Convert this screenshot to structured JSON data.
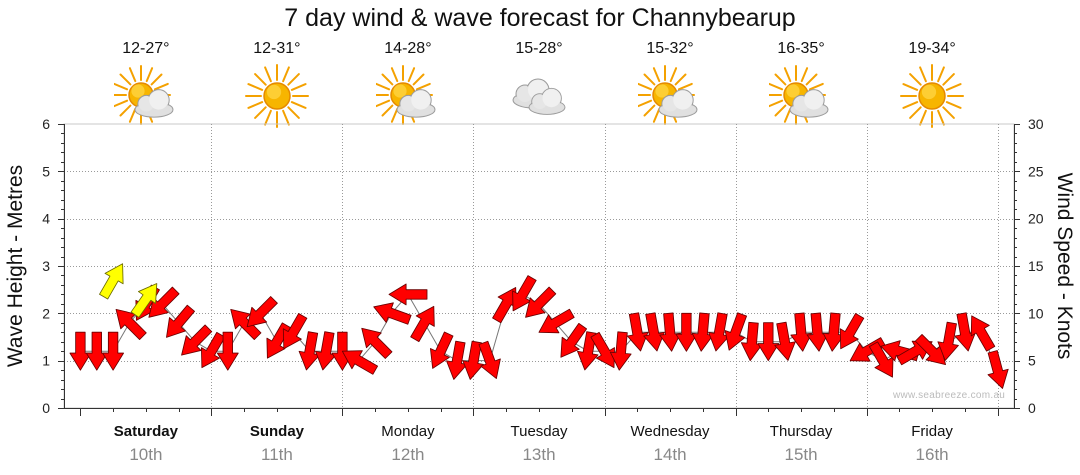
{
  "title": "7 day wind & wave forecast for Channybearup",
  "credit": "www.seabreeze.com.au",
  "colors": {
    "wind_arrow": "#ff0000",
    "wave_arrow": "#ffff00",
    "grid": "#9a9a9a",
    "day_number": "#888888"
  },
  "days": [
    {
      "name": "Saturday",
      "date": "10th",
      "temp": "12-27°",
      "icon": "sun-cloud-icon",
      "bold": true
    },
    {
      "name": "Sunday",
      "date": "11th",
      "temp": "12-31°",
      "icon": "sun-icon",
      "bold": true
    },
    {
      "name": "Monday",
      "date": "12th",
      "temp": "14-28°",
      "icon": "sun-cloud-icon",
      "bold": false
    },
    {
      "name": "Tuesday",
      "date": "13th",
      "temp": "15-28°",
      "icon": "cloud-icon",
      "bold": false
    },
    {
      "name": "Wednesday",
      "date": "14th",
      "temp": "15-32°",
      "icon": "sun-cloud-icon",
      "bold": false
    },
    {
      "name": "Thursday",
      "date": "15th",
      "temp": "16-35°",
      "icon": "sun-cloud-icon",
      "bold": false
    },
    {
      "name": "Friday",
      "date": "16th",
      "temp": "19-34°",
      "icon": "sun-icon",
      "bold": false
    }
  ],
  "chart_data": {
    "type": "line",
    "ylabel": "Wave Height - Metres",
    "y2label": "Wind Speed - Knots",
    "ylim": [
      0,
      6
    ],
    "y2lim": [
      0,
      30
    ],
    "yticks": [
      "0",
      "1",
      "2",
      "3",
      "4",
      "5",
      "6"
    ],
    "y2ticks": [
      "0",
      "5",
      "10",
      "15",
      "20",
      "25",
      "30"
    ],
    "grid": true,
    "x_unit": "hours from start of Saturday",
    "xlim": [
      -9,
      165
    ],
    "series": [
      {
        "kind": "wind",
        "x": [
          -6,
          -3,
          0,
          3,
          6,
          9,
          12,
          15,
          18,
          21,
          24,
          27,
          30,
          33,
          36,
          39,
          42,
          45,
          48,
          51,
          54,
          57,
          60,
          63,
          66,
          69,
          72,
          75,
          78,
          81,
          84,
          87,
          90,
          93,
          96,
          99,
          102,
          105,
          108,
          111,
          114,
          117,
          120,
          123,
          126,
          129,
          132,
          135,
          138,
          141,
          144,
          147,
          150,
          153,
          156,
          159,
          162
        ],
        "speed": [
          6,
          6,
          6,
          9,
          11,
          11,
          9,
          7,
          6,
          6,
          9,
          10,
          7,
          8,
          6,
          6,
          6,
          5,
          7,
          10,
          12,
          9,
          6,
          5,
          5,
          5,
          11,
          12,
          11,
          9,
          7,
          6,
          6,
          6,
          8,
          8,
          8,
          8,
          8,
          8,
          8,
          7,
          7,
          7,
          8,
          8,
          8,
          8,
          6,
          5,
          6,
          6,
          6,
          7,
          8,
          8,
          4
        ],
        "direction_deg": [
          90,
          90,
          90,
          225,
          120,
          135,
          130,
          135,
          120,
          90,
          225,
          135,
          120,
          120,
          100,
          100,
          90,
          210,
          225,
          200,
          180,
          300,
          115,
          100,
          100,
          70,
          300,
          120,
          135,
          150,
          125,
          100,
          60,
          95,
          80,
          80,
          85,
          90,
          95,
          100,
          110,
          95,
          90,
          80,
          85,
          85,
          95,
          120,
          150,
          60,
          195,
          330,
          45,
          100,
          80,
          240,
          75
        ]
      },
      {
        "kind": "wave",
        "x": [
          0,
          6
        ],
        "height": [
          2.7,
          2.3
        ],
        "direction_deg": [
          120,
          125
        ]
      }
    ]
  }
}
